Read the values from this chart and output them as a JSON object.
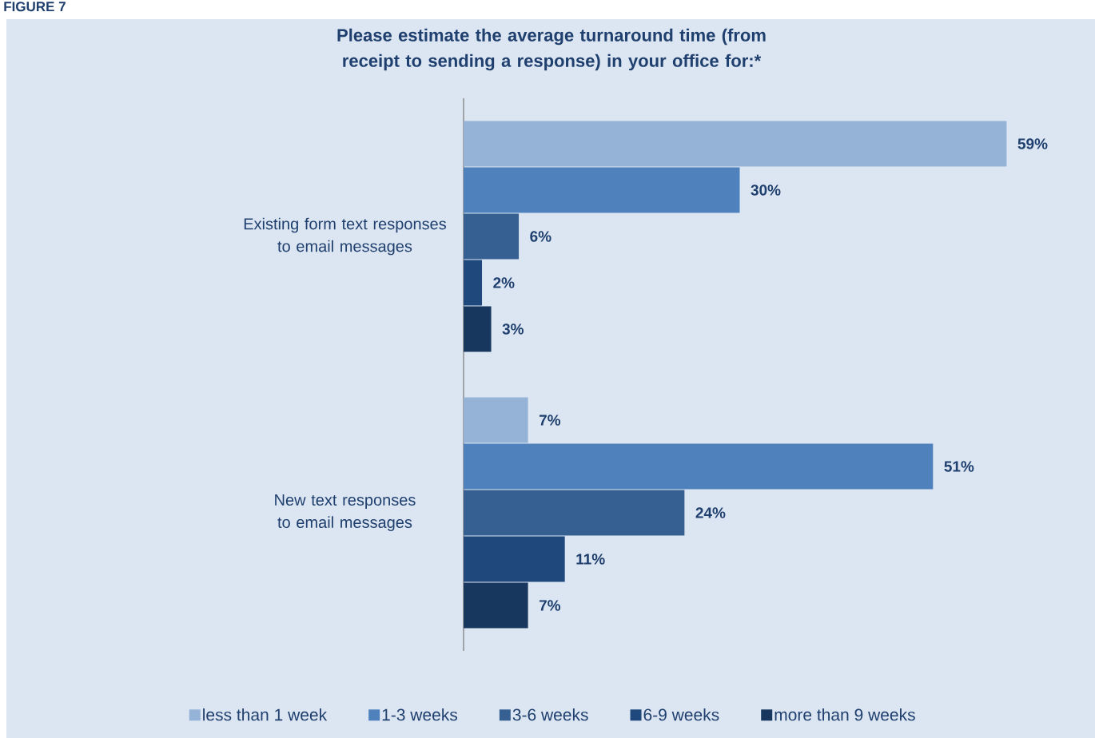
{
  "chart_data": {
    "type": "bar",
    "orientation": "horizontal",
    "title": "Please estimate the average turnaround time (from receipt to sending a response) in your office for:*",
    "annotations": [
      "FIGURE 7"
    ],
    "categories": [
      "Existing form text responses to email messages",
      "New text responses to email messages"
    ],
    "series": [
      {
        "name": "less than 1 week",
        "color": "#95b3d7",
        "values": [
          59,
          7
        ],
        "value_labels": [
          "59%",
          "7%"
        ]
      },
      {
        "name": "1-3 weeks",
        "color": "#4f81bd",
        "values": [
          30,
          51
        ],
        "value_labels": [
          "30%",
          "51%"
        ]
      },
      {
        "name": "3-6 weeks",
        "color": "#376092",
        "values": [
          6,
          24
        ],
        "value_labels": [
          "6%",
          "24%"
        ]
      },
      {
        "name": "6-9 weeks",
        "color": "#1f497d",
        "values": [
          2,
          11
        ],
        "value_labels": [
          "2%",
          "11%"
        ]
      },
      {
        "name": "more than 9 weeks",
        "color": "#17375e",
        "values": [
          3,
          7
        ],
        "value_labels": [
          "3%",
          "7%"
        ]
      }
    ],
    "tick_labels": "y",
    "legend": "bottom"
  }
}
